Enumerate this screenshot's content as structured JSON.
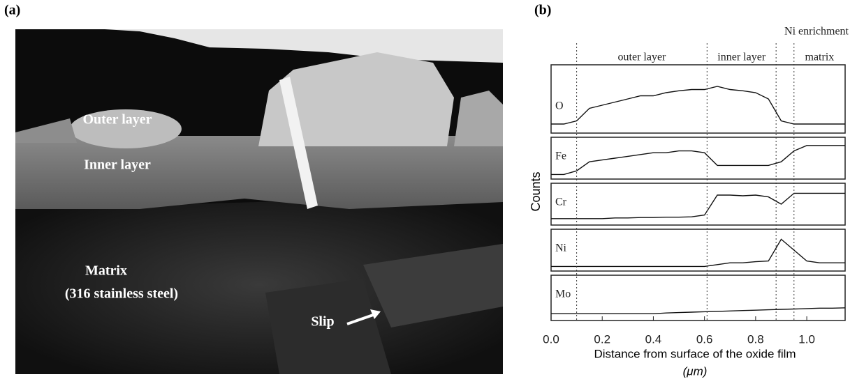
{
  "panel_a": {
    "label": "(a)",
    "outer_layer": "Outer layer",
    "inner_layer": "Inner layer",
    "matrix": "Matrix",
    "matrix_material": "(316 stainless steel)",
    "slip": "Slip"
  },
  "chart_data": {
    "type": "line",
    "panel_label": "(b)",
    "ylabel": "Counts",
    "xlabel": "Distance from surface of the oxide film",
    "xlabel_unit": "(μm)",
    "annotation": "Ni enrichment",
    "regions": [
      {
        "label": "outer layer",
        "from": 0.1,
        "to": 0.61
      },
      {
        "label": "inner layer",
        "from": 0.61,
        "to": 0.88
      },
      {
        "label": "matrix",
        "from": 0.95,
        "to": 1.15
      }
    ],
    "dividers": [
      0.1,
      0.61,
      0.88,
      0.95
    ],
    "xlim": [
      0,
      1.15
    ],
    "xticks": [
      {
        "value": 0,
        "label": "0.0"
      },
      0.2,
      0.4,
      0.6,
      0.8,
      {
        "value": 1,
        "label": "1.0"
      }
    ],
    "ylim": [
      0,
      10
    ],
    "x": [
      0,
      0.05,
      0.1,
      0.15,
      0.2,
      0.25,
      0.3,
      0.35,
      0.4,
      0.45,
      0.5,
      0.55,
      0.6,
      0.65,
      0.7,
      0.75,
      0.8,
      0.85,
      0.9,
      0.95,
      1.0,
      1.05,
      1.1,
      1.15
    ],
    "series": [
      {
        "name": "O",
        "color": "#111111",
        "values": [
          1,
          1,
          1.5,
          3.5,
          4,
          4.5,
          5,
          5.5,
          5.5,
          6,
          6.3,
          6.5,
          6.5,
          7,
          6.5,
          6.3,
          6,
          5,
          1.5,
          1,
          1,
          1,
          1,
          1
        ]
      },
      {
        "name": "Fe",
        "color": "#111111",
        "values": [
          0.5,
          0.5,
          1.5,
          4,
          4.5,
          5,
          5.5,
          6,
          6.5,
          6.5,
          7,
          7,
          6.5,
          3,
          3,
          3,
          3,
          3,
          4,
          7,
          8.5,
          8.5,
          8.5,
          8.5
        ]
      },
      {
        "name": "Cr",
        "color": "#111111",
        "values": [
          1,
          1,
          1,
          1,
          1,
          1.2,
          1.2,
          1.3,
          1.3,
          1.4,
          1.4,
          1.5,
          2,
          7.5,
          7.5,
          7.3,
          7.5,
          7,
          5,
          8,
          8,
          8,
          8,
          8
        ]
      },
      {
        "name": "Ni",
        "color": "#111111",
        "values": [
          0.5,
          0.5,
          0.5,
          0.5,
          0.5,
          0.5,
          0.5,
          0.5,
          0.5,
          0.5,
          0.5,
          0.5,
          0.5,
          1,
          1.5,
          1.5,
          1.8,
          2,
          8,
          5,
          2,
          1.5,
          1.5,
          1.5
        ]
      },
      {
        "name": "Mo",
        "color": "#111111",
        "values": [
          1,
          1,
          1,
          1,
          1,
          1,
          1,
          1,
          1,
          1.2,
          1.3,
          1.4,
          1.5,
          1.6,
          1.7,
          1.8,
          1.9,
          2,
          2.1,
          2.2,
          2.3,
          2.4,
          2.4,
          2.5
        ]
      }
    ]
  }
}
